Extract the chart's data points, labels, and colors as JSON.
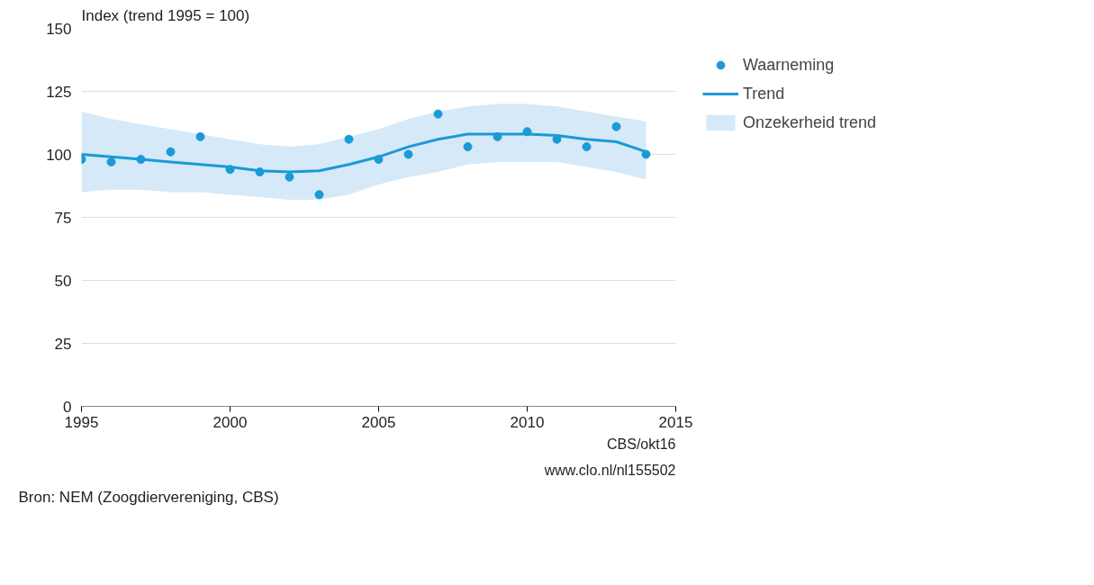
{
  "chart_data": {
    "type": "scatter",
    "ylabel": "Index (trend 1995 = 100)",
    "x": [
      1995,
      1996,
      1997,
      1998,
      1999,
      2000,
      2001,
      2002,
      2003,
      2004,
      2005,
      2006,
      2007,
      2008,
      2009,
      2010,
      2011,
      2012,
      2013,
      2014
    ],
    "series": [
      {
        "name": "Waarneming",
        "marker": "circle",
        "color": "#1a9ad6",
        "values": [
          98,
          97,
          98,
          101,
          107,
          94,
          93,
          91,
          84,
          106,
          98,
          100,
          116,
          103,
          107,
          109,
          106,
          103,
          111,
          100
        ]
      },
      {
        "name": "Trend",
        "type": "line",
        "color": "#1a9ad6",
        "values": [
          100,
          99,
          98,
          97,
          96,
          95,
          93.5,
          93,
          93.5,
          96,
          99,
          103,
          106,
          108,
          108,
          108,
          107.5,
          106,
          105,
          101
        ]
      },
      {
        "name": "Onzekerheid trend",
        "type": "area",
        "color": "#d6e9f8",
        "values": [
          null,
          null,
          null,
          null,
          null,
          null,
          null,
          null,
          null,
          null,
          null,
          null,
          null,
          null,
          null,
          null,
          null,
          null,
          null,
          null
        ],
        "lower": [
          85,
          86,
          86,
          85,
          85,
          84,
          83,
          82,
          82,
          84,
          88,
          91,
          93,
          96,
          97,
          97,
          97,
          95,
          93,
          90
        ],
        "upper": [
          117,
          114,
          112,
          110,
          108,
          106,
          104,
          103,
          104,
          107,
          110,
          114,
          117,
          119,
          120,
          120,
          119,
          117,
          115,
          113
        ]
      }
    ],
    "xlim": [
      1995,
      2015
    ],
    "xticks": [
      1995,
      2000,
      2005,
      2010,
      2015
    ],
    "ylim": [
      0,
      150
    ],
    "yticks": [
      0,
      25,
      50,
      75,
      100,
      125,
      150
    ],
    "grid": "y",
    "legend": "right",
    "line_style": "solid",
    "annotations": [
      "Bron: NEM (Zoogdiervereniging, CBS)",
      "CBS/okt16",
      "www.clo.nl/nl155502"
    ]
  }
}
